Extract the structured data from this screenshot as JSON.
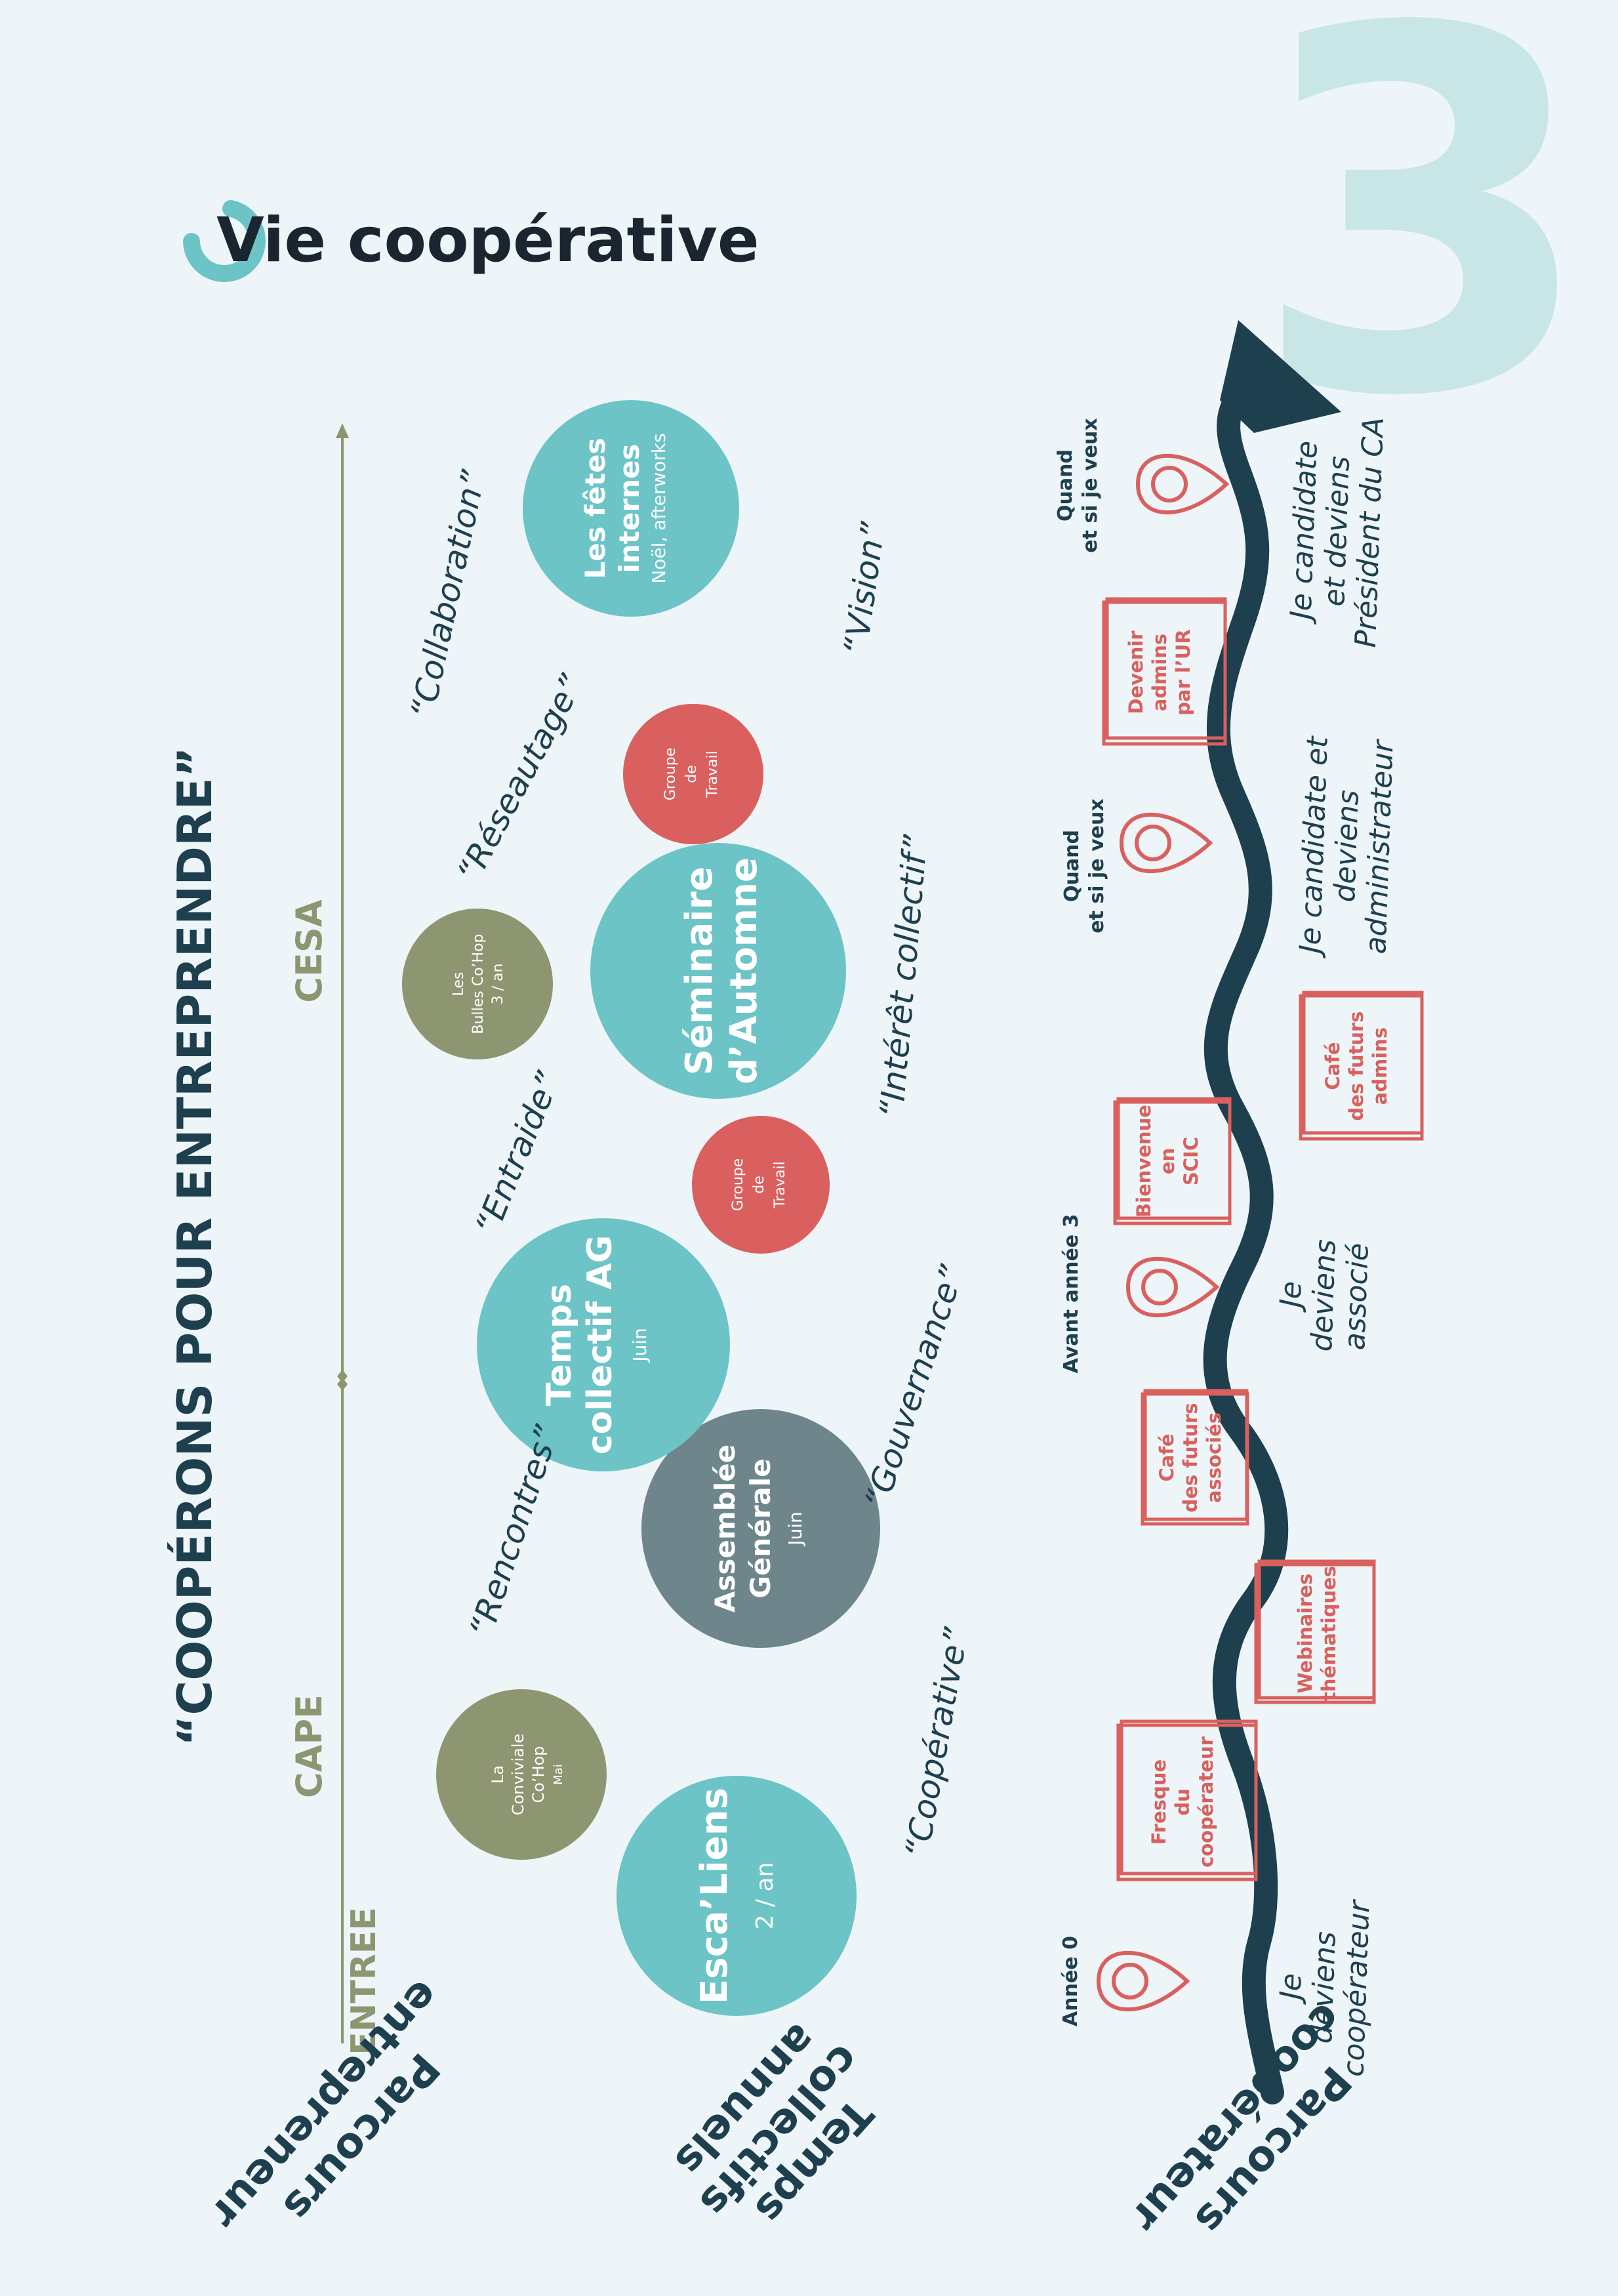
{
  "header": {
    "page_number": "3",
    "title": "Vie coopérative",
    "slogan": "“COOPÉRONS POUR ENTREPRENDRE”"
  },
  "colors": {
    "background": "#eef5f8",
    "teal": "#6cc4c6",
    "olive": "#8d9670",
    "red": "#d9605e",
    "slate": "#6e858b",
    "navy": "#1e3f4e",
    "big_number": "#c9e6e6"
  },
  "parcours_entrepreneur": {
    "label": [
      "Parcours",
      "entrepreneur"
    ],
    "stages": {
      "entree": "ENTREE",
      "cape": "CAPE",
      "cesa": "CESA"
    }
  },
  "temps_collectifs": {
    "label": [
      "Temps",
      "collectifs",
      "annuels"
    ],
    "bubbles": {
      "escaliens": {
        "title": "Esca’Liens",
        "sub": "2 / an"
      },
      "conviviale": {
        "lines": [
          "La",
          "Conviviale",
          "Co’Hop"
        ],
        "sub": "Mai"
      },
      "assemblee": {
        "lines": [
          "Assemblée",
          "Générale"
        ],
        "sub": "Juin"
      },
      "temps_ag": {
        "lines": [
          "Temps",
          "collectif AG"
        ],
        "sub": "Juin"
      },
      "groupe1": {
        "lines": [
          "Groupe",
          "de",
          "Travail"
        ]
      },
      "seminaire": {
        "lines": [
          "Séminaire",
          "d’Automne"
        ]
      },
      "bulles": {
        "lines": [
          "Les",
          "Bulles Co’Hop"
        ],
        "sub": "3 / an"
      },
      "groupe2": {
        "lines": [
          "Groupe",
          "de",
          "Travail"
        ]
      },
      "fetes": {
        "lines": [
          "Les fêtes",
          "internes"
        ],
        "sub": "Noël, afterworks"
      }
    },
    "words": {
      "cooperative": "“Coopérative”",
      "rencontres": "“Rencontres”",
      "gouvernance": "“Gouvernance”",
      "entraide": "“Entraide”",
      "interet": "“Intérêt collectif”",
      "reseautage": "“Réseautage”",
      "collaboration": "“Collaboration”",
      "vision": "“Vision”"
    }
  },
  "parcours_cooperateur": {
    "label": [
      "Parcours",
      "coopérateur"
    ],
    "milestones": {
      "m1": {
        "when": "Année 0",
        "what": [
          "Je",
          "deviens",
          "coopérateur"
        ]
      },
      "m2": {
        "when": "Avant année 3",
        "what": [
          "Je",
          "deviens",
          "associé"
        ]
      },
      "m3": {
        "when": [
          "Quand",
          "et si je veux"
        ],
        "what": [
          "Je candidate et",
          "deviens",
          "administrateur"
        ]
      },
      "m4": {
        "when": [
          "Quand",
          "et si je veux"
        ],
        "what": [
          "Je candidate",
          "et deviens",
          "Président du CA"
        ]
      }
    },
    "boxes": {
      "fresque": [
        "Fresque",
        "du",
        "coopérateur"
      ],
      "webinaires": [
        "Webinaires",
        "thématiques"
      ],
      "cafe_associes": [
        "Café",
        "des futurs",
        "associés"
      ],
      "bienvenue": [
        "Bienvenue",
        "en",
        "SCIC"
      ],
      "cafe_admins": [
        "Café",
        "des futurs",
        "admins"
      ],
      "devenir": [
        "Devenir",
        "admins",
        "par l’UR"
      ]
    }
  }
}
